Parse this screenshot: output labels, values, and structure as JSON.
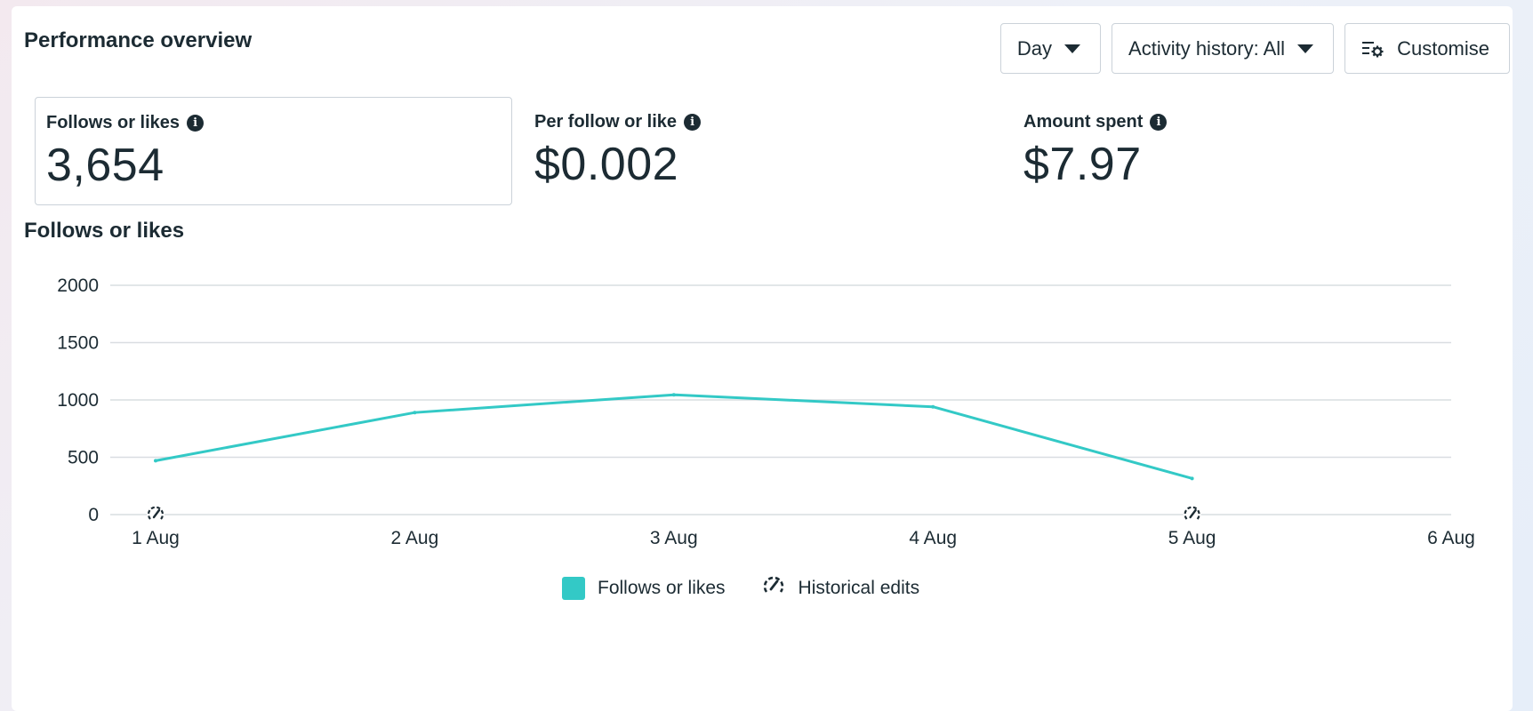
{
  "page": {
    "title": "Performance overview"
  },
  "toolbar": {
    "period_label": "Day",
    "activity_label": "Activity history: All",
    "customise_label": "Customise"
  },
  "metrics": [
    {
      "label": "Follows or likes",
      "value": "3,654",
      "selected": true
    },
    {
      "label": "Per follow or like",
      "value": "$0.002",
      "selected": false
    },
    {
      "label": "Amount spent",
      "value": "$7.97",
      "selected": false
    }
  ],
  "chart_section": {
    "title": "Follows or likes"
  },
  "legend": {
    "series_label": "Follows or likes",
    "edits_label": "Historical edits"
  },
  "colors": {
    "series": "#33c9c6",
    "grid": "#d9dde1",
    "text": "#1c2b33"
  },
  "chart_data": {
    "type": "line",
    "x": [
      "1 Aug",
      "2 Aug",
      "3 Aug",
      "4 Aug",
      "5 Aug",
      "6 Aug"
    ],
    "series": [
      {
        "name": "Follows or likes",
        "values": [
          470,
          890,
          1045,
          940,
          315,
          null
        ]
      }
    ],
    "historical_edit_markers": [
      "1 Aug",
      "5 Aug"
    ],
    "y_ticks": [
      0,
      500,
      1000,
      1500,
      2000
    ],
    "ylim": [
      0,
      2000
    ],
    "grid": true,
    "legend_position": "bottom"
  }
}
